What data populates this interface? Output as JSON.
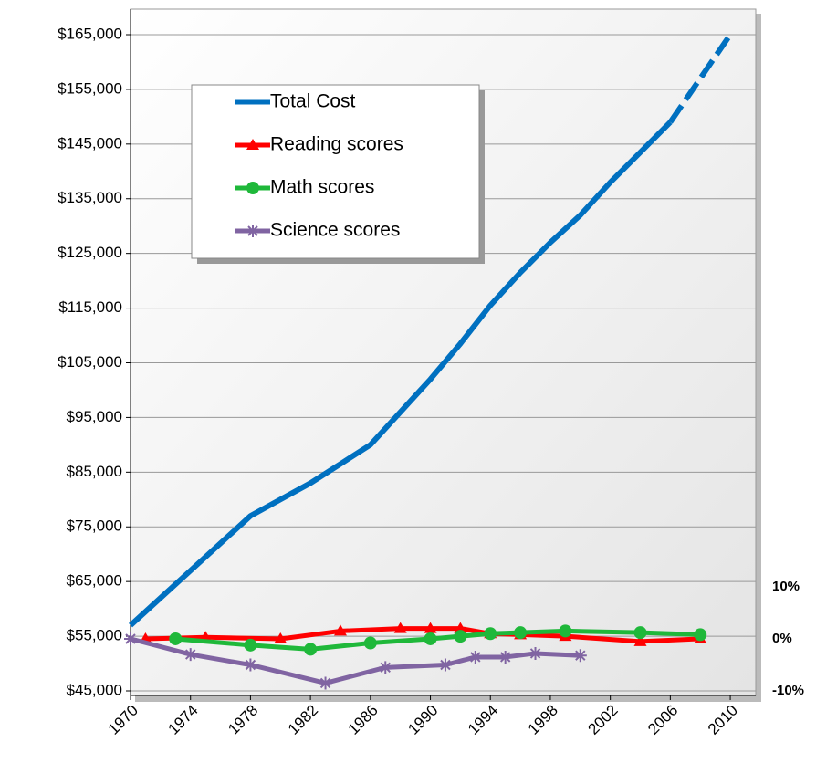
{
  "chart_data": {
    "type": "line",
    "x": [
      1970,
      1972,
      1974,
      1976,
      1978,
      1980,
      1982,
      1984,
      1986,
      1988,
      1990,
      1992,
      1994,
      1996,
      1998,
      2000,
      2002,
      2004,
      2006,
      2008,
      2010
    ],
    "xlim": [
      1970,
      2011.7
    ],
    "xticks": [
      1970,
      1974,
      1978,
      1982,
      1986,
      1990,
      1994,
      1998,
      2002,
      2006,
      2010
    ],
    "ylim": [
      45000,
      165000
    ],
    "yticks": [
      {
        "value": 45000,
        "label": "$45,000"
      },
      {
        "value": 55000,
        "label": "$55,000"
      },
      {
        "value": 65000,
        "label": "$65,000"
      },
      {
        "value": 75000,
        "label": "$75,000"
      },
      {
        "value": 85000,
        "label": "$85,000"
      },
      {
        "value": 95000,
        "label": "$95,000"
      },
      {
        "value": 105000,
        "label": "$105,000"
      },
      {
        "value": 115000,
        "label": "$115,000"
      },
      {
        "value": 125000,
        "label": "$125,000"
      },
      {
        "value": 135000,
        "label": "$135,000"
      },
      {
        "value": 145000,
        "label": "$145,000"
      },
      {
        "value": 155000,
        "label": "$155,000"
      },
      {
        "value": 165000,
        "label": "$165,000"
      }
    ],
    "y2lim": [
      -10,
      116.1
    ],
    "y2ticks": [
      {
        "value": -10,
        "label": "-10%"
      },
      {
        "value": 0,
        "label": "0%"
      },
      {
        "value": 10,
        "label": "10%"
      }
    ],
    "y2_negative_color": "#ff0000",
    "grid": true,
    "series": [
      {
        "name": "Total Cost",
        "color": "#0070c0",
        "marker": "none",
        "dashed_from_x": 2006,
        "values": [
          57000,
          62000,
          67000,
          72000,
          77000,
          80000,
          83000,
          86500,
          90000,
          96000,
          102000,
          108500,
          115500,
          121500,
          127000,
          132000,
          138000,
          143500,
          149000,
          157000,
          165000
        ]
      },
      {
        "name": "Reading scores",
        "color": "#ff0000",
        "marker": "triangle",
        "axis": "y2",
        "x": [
          1971,
          1975,
          1980,
          1984,
          1988,
          1990,
          1992,
          1994,
          1996,
          1999,
          2004,
          2008
        ],
        "values": [
          0,
          0.3,
          0,
          1.5,
          2,
          2,
          2,
          1,
          0.8,
          0.5,
          -0.5,
          0
        ]
      },
      {
        "name": "Math scores",
        "color": "#1fb83a",
        "marker": "circle",
        "axis": "y2",
        "x": [
          1973,
          1978,
          1982,
          1986,
          1990,
          1992,
          1994,
          1996,
          1999,
          2004,
          2008
        ],
        "values": [
          0,
          -1.2,
          -2,
          -0.8,
          0,
          0.5,
          1,
          1.2,
          1.5,
          1.2,
          0.8
        ]
      },
      {
        "name": "Science scores",
        "color": "#8064a2",
        "marker": "star",
        "axis": "y2",
        "x": [
          1970,
          1974,
          1978,
          1983,
          1987,
          1991,
          1993,
          1995,
          1997,
          2000
        ],
        "values": [
          0,
          -3,
          -5,
          -8.5,
          -5.5,
          -5,
          -3.5,
          -3.5,
          -2.8,
          -3.2
        ]
      }
    ]
  }
}
